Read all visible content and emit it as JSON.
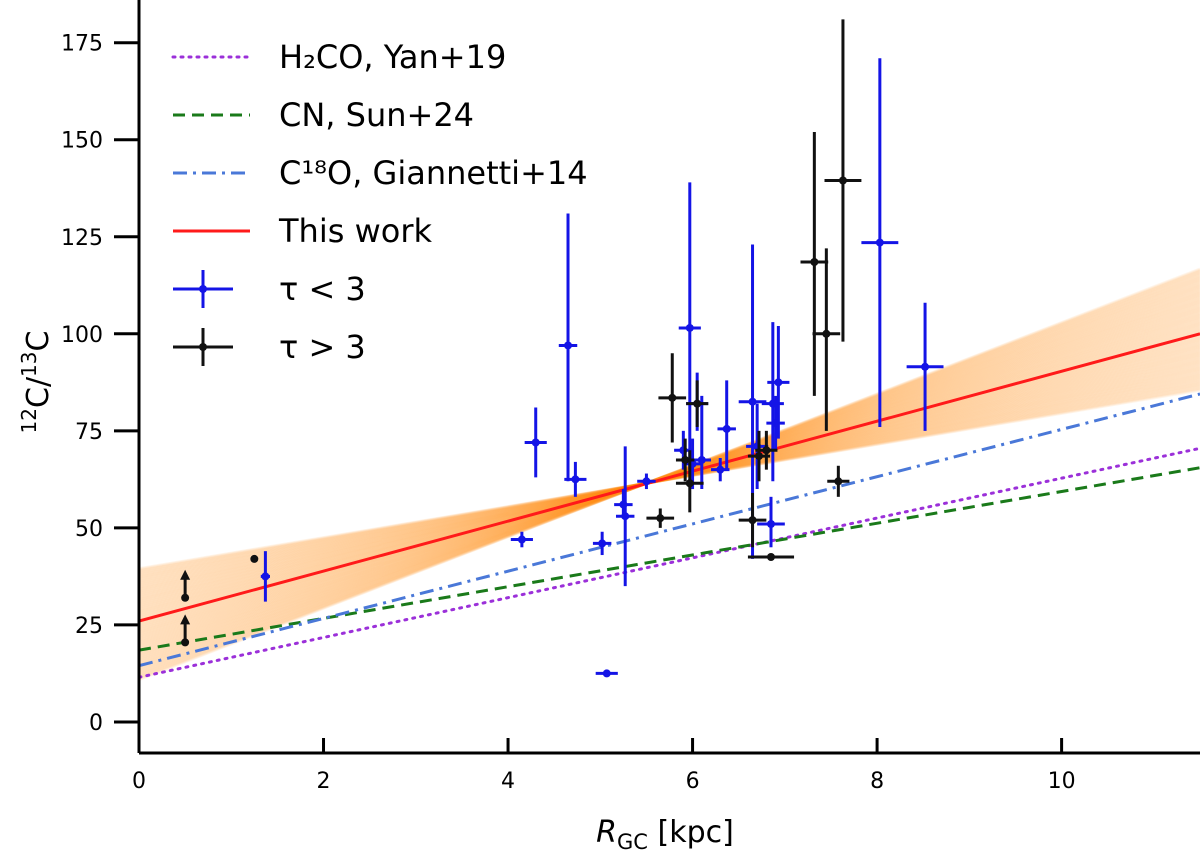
{
  "chart_data": {
    "type": "scatter",
    "title": "",
    "xlabel": {
      "main": "R",
      "sub": "GC",
      "unit": " [kpc]"
    },
    "ylabel": {
      "sup1": "12",
      "mid": "C/",
      "sup2": "13",
      "end": "C"
    },
    "xlim": [
      0,
      11.5
    ],
    "ylim": [
      -8,
      186
    ],
    "xticks": [
      0,
      2,
      4,
      6,
      8,
      10
    ],
    "yticks": [
      0,
      25,
      50,
      75,
      100,
      125,
      150,
      175
    ],
    "grid": false,
    "legend_position": "top-left",
    "legend": [
      {
        "text": "H₂CO, Yan+19",
        "color": "#9b30d9",
        "style": "dotted"
      },
      {
        "text": "CN, Sun+24",
        "color": "#1a7a1a",
        "style": "dashed"
      },
      {
        "text": "C¹⁸O, Giannetti+14",
        "color": "#4a78d8",
        "style": "dashdot"
      },
      {
        "text": "This work",
        "color": "#ff1a1a",
        "style": "solid"
      },
      {
        "text": "τ < 3",
        "color": "#1414e6",
        "style": "errorbar"
      },
      {
        "text": "τ > 3",
        "color": "#111111",
        "style": "errorbar"
      }
    ],
    "lines": [
      {
        "name": "H2CO, Yan+19",
        "color": "#9b30d9",
        "style": "dotted",
        "x": [
          0,
          11.5
        ],
        "y": [
          11.5,
          70.5
        ]
      },
      {
        "name": "CN, Sun+24",
        "color": "#1a7a1a",
        "style": "dashed",
        "x": [
          0,
          11.5
        ],
        "y": [
          18.5,
          65.5
        ]
      },
      {
        "name": "C18O, Giannetti+14",
        "color": "#4a78d8",
        "style": "dashdot",
        "x": [
          0,
          11.5
        ],
        "y": [
          14.5,
          84.5
        ]
      },
      {
        "name": "This work",
        "color": "#ff1a1a",
        "style": "solid",
        "x": [
          0,
          11.5
        ],
        "y": [
          26,
          100
        ]
      }
    ],
    "posterior_band": {
      "color": "#ff8c1a",
      "anchor_x": 5.5,
      "anchor_y": 61.5,
      "slope_min": 4.0,
      "slope_max": 9.2,
      "n": 120
    },
    "series": [
      {
        "name": "tau < 3",
        "color": "#1414e6",
        "points": [
          {
            "x": 1.37,
            "y": 37.5,
            "xerr": 0.05,
            "ylo": 31,
            "yhi": 44
          },
          {
            "x": 4.15,
            "y": 47,
            "xerr": 0.12,
            "ylo": 45,
            "yhi": 49
          },
          {
            "x": 4.3,
            "y": 72,
            "xerr": 0.12,
            "ylo": 63,
            "yhi": 81
          },
          {
            "x": 4.65,
            "y": 97,
            "xerr": 0.1,
            "ylo": 62,
            "yhi": 131
          },
          {
            "x": 4.73,
            "y": 62.5,
            "xerr": 0.12,
            "ylo": 58,
            "yhi": 67
          },
          {
            "x": 5.02,
            "y": 46,
            "xerr": 0.1,
            "ylo": 43,
            "yhi": 49
          },
          {
            "x": 5.07,
            "y": 12.5,
            "xerr": 0.12,
            "ylo": 12,
            "yhi": 13
          },
          {
            "x": 5.25,
            "y": 56,
            "xerr": 0.1,
            "ylo": 53,
            "yhi": 60
          },
          {
            "x": 5.27,
            "y": 53,
            "xerr": 0.1,
            "ylo": 35,
            "yhi": 71
          },
          {
            "x": 5.5,
            "y": 62,
            "xerr": 0.1,
            "ylo": 60,
            "yhi": 64
          },
          {
            "x": 5.9,
            "y": 70,
            "xerr": 0.1,
            "ylo": 65,
            "yhi": 75
          },
          {
            "x": 5.97,
            "y": 101.5,
            "xerr": 0.12,
            "ylo": 65,
            "yhi": 139
          },
          {
            "x": 6.0,
            "y": 66.5,
            "xerr": 0.1,
            "ylo": 60,
            "yhi": 73
          },
          {
            "x": 6.05,
            "y": 82,
            "xerr": 0.12,
            "ylo": 75,
            "yhi": 90
          },
          {
            "x": 6.1,
            "y": 67.5,
            "xerr": 0.1,
            "ylo": 60,
            "yhi": 84
          },
          {
            "x": 6.3,
            "y": 65,
            "xerr": 0.1,
            "ylo": 62,
            "yhi": 68
          },
          {
            "x": 6.37,
            "y": 75.5,
            "xerr": 0.1,
            "ylo": 65,
            "yhi": 88
          },
          {
            "x": 6.65,
            "y": 82.5,
            "xerr": 0.15,
            "ylo": 42,
            "yhi": 123
          },
          {
            "x": 6.7,
            "y": 71,
            "xerr": 0.12,
            "ylo": 60,
            "yhi": 82
          },
          {
            "x": 6.85,
            "y": 51,
            "xerr": 0.15,
            "ylo": 45,
            "yhi": 58
          },
          {
            "x": 6.87,
            "y": 82,
            "xerr": 0.12,
            "ylo": 62,
            "yhi": 103
          },
          {
            "x": 6.9,
            "y": 77,
            "xerr": 0.1,
            "ylo": 70,
            "yhi": 84
          },
          {
            "x": 6.93,
            "y": 87.5,
            "xerr": 0.12,
            "ylo": 73,
            "yhi": 102
          },
          {
            "x": 8.03,
            "y": 123.5,
            "xerr": 0.2,
            "ylo": 76,
            "yhi": 171
          },
          {
            "x": 8.52,
            "y": 91.5,
            "xerr": 0.2,
            "ylo": 75,
            "yhi": 108
          }
        ]
      },
      {
        "name": "tau > 3",
        "color": "#111111",
        "points": [
          {
            "x": 1.25,
            "y": 42,
            "xerr": 0,
            "ylo": 42,
            "yhi": 42
          },
          {
            "x": 5.65,
            "y": 52.5,
            "xerr": 0.15,
            "ylo": 50,
            "yhi": 55
          },
          {
            "x": 5.78,
            "y": 83.5,
            "xerr": 0.15,
            "ylo": 72,
            "yhi": 95
          },
          {
            "x": 5.92,
            "y": 67.5,
            "xerr": 0.1,
            "ylo": 62,
            "yhi": 73
          },
          {
            "x": 5.97,
            "y": 61.5,
            "xerr": 0.15,
            "ylo": 54,
            "yhi": 70
          },
          {
            "x": 6.05,
            "y": 82,
            "xerr": 0.12,
            "ylo": 76,
            "yhi": 88
          },
          {
            "x": 6.65,
            "y": 52,
            "xerr": 0.15,
            "ylo": 45,
            "yhi": 59
          },
          {
            "x": 6.72,
            "y": 68.5,
            "xerr": 0.12,
            "ylo": 62,
            "yhi": 75
          },
          {
            "x": 6.8,
            "y": 70,
            "xerr": 0.12,
            "ylo": 65,
            "yhi": 75
          },
          {
            "x": 6.85,
            "y": 42.5,
            "xerr": 0.25,
            "ylo": 42,
            "yhi": 43
          },
          {
            "x": 7.32,
            "y": 118.5,
            "xerr": 0.15,
            "ylo": 84,
            "yhi": 152
          },
          {
            "x": 7.45,
            "y": 100,
            "xerr": 0.15,
            "ylo": 75,
            "yhi": 122
          },
          {
            "x": 7.58,
            "y": 62,
            "xerr": 0.12,
            "ylo": 58,
            "yhi": 66
          },
          {
            "x": 7.63,
            "y": 139.5,
            "xerr": 0.2,
            "ylo": 98,
            "yhi": 181
          }
        ]
      }
    ],
    "lower_limits": [
      {
        "x": 0.5,
        "y": 32,
        "color": "#111111"
      },
      {
        "x": 0.5,
        "y": 20.5,
        "color": "#111111"
      }
    ]
  }
}
